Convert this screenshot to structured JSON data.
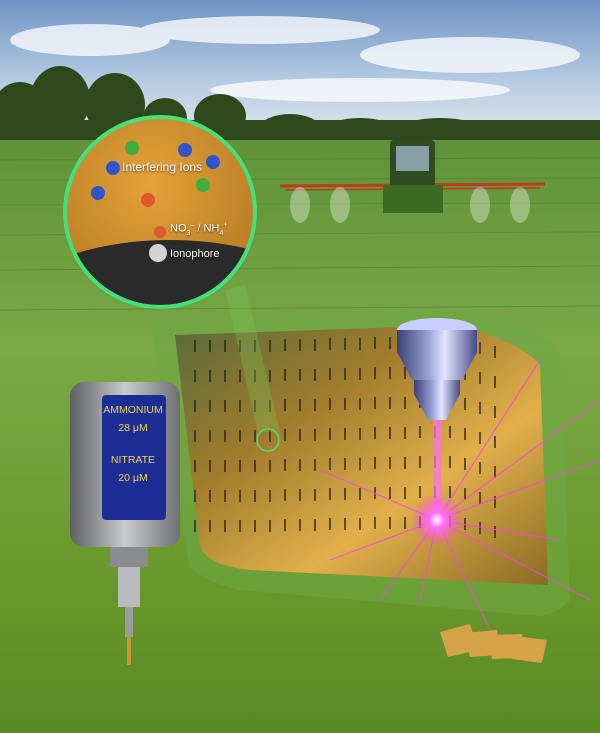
{
  "inset": {
    "title": "Interfering Ions",
    "ions_label_main": "NO",
    "ions_label_sub1": "3",
    "ions_label_sup1": "–",
    "ions_label_mid": " / NH",
    "ions_label_sub2": "4",
    "ions_label_sup2": "+",
    "ionophore_label": "Ionophore"
  },
  "meter": {
    "line1": "AMMONIUM",
    "line2": "28 μM",
    "line3": "NITRATE",
    "line4": "20 μM"
  },
  "colors": {
    "sky": "#8fb1d6",
    "field": "#6a9a2e",
    "sensor_gold": "#c9962f",
    "laser": "#ff3df2",
    "inset_border": "#46e07a",
    "screen_bg": "#1d2d96",
    "screen_text": "#f4d64a"
  },
  "icons": [
    "tractor-sprayer-icon",
    "laser-nozzle-icon",
    "handheld-meter-icon",
    "ion-sphere-icon"
  ]
}
